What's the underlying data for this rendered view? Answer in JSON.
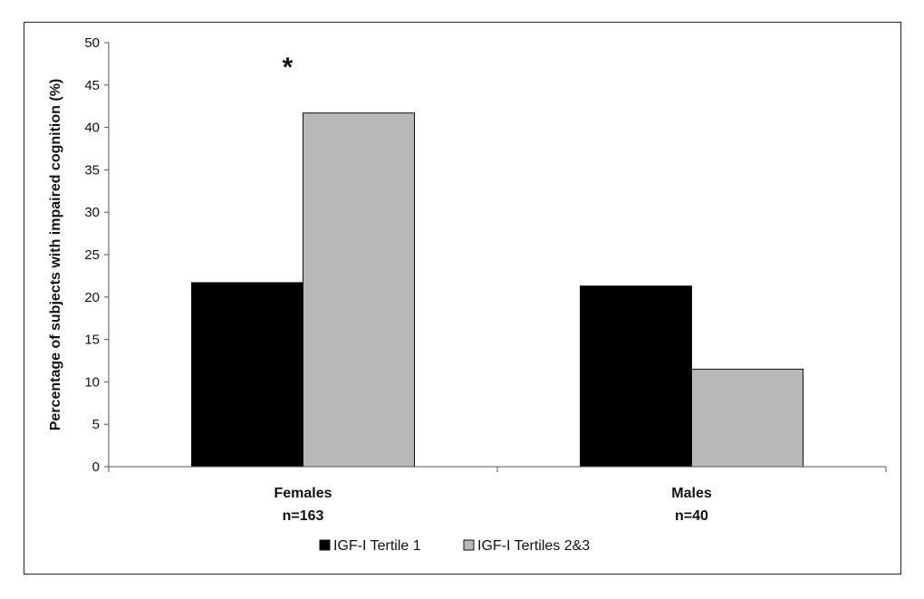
{
  "chart_data": {
    "type": "bar",
    "ylabel": "Percentage of subjects with impaired cognition (%)",
    "xlabel": "",
    "ylim": [
      0,
      50
    ],
    "yticks": [
      0,
      5,
      10,
      15,
      20,
      25,
      30,
      35,
      40,
      45,
      50
    ],
    "categories": [
      {
        "name": "Females",
        "sub": "n=163"
      },
      {
        "name": "Males",
        "sub": "n=40"
      }
    ],
    "series": [
      {
        "name": "IGF-I Tertile 1",
        "color": "#000000",
        "values": [
          21.7,
          21.3
        ]
      },
      {
        "name": "IGF-I Tertiles 2&3",
        "color": "#b8b8b8",
        "values": [
          41.7,
          11.5
        ]
      }
    ],
    "annotations": [
      {
        "text": "*",
        "category": 0
      }
    ],
    "legend_position": "bottom",
    "grid": false
  }
}
